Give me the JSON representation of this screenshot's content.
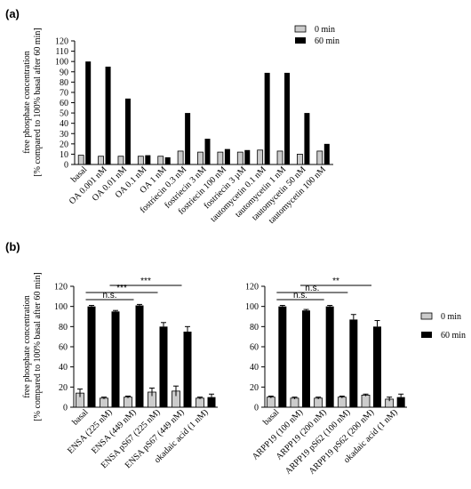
{
  "panels": {
    "a_label": "(a)",
    "b_label": "(b)"
  },
  "chart_data": [
    {
      "type": "bar",
      "panel": "(a)",
      "ylabel": "free phosphate concentration\n[% compared to 100% basal after 60 min]",
      "ylim": [
        0,
        120
      ],
      "yticks": [
        0,
        10,
        20,
        30,
        40,
        50,
        60,
        70,
        80,
        90,
        100,
        110,
        120
      ],
      "legend_position": "top-right",
      "categories": [
        "basal",
        "OA 0.001 nM",
        "OA 0.01 nM",
        "OA 0.1 nM",
        "OA 1 nM",
        "fostriecin 0.3 nM",
        "fostriecin 3 nM",
        "fostriecin 100 nM",
        "fostriecin 3 µM",
        "tautomycetin 0.1 nM",
        "tautomycetin 1 nM",
        "tautomycetin 50 nM",
        "tautomycetin 100 nM"
      ],
      "series": [
        {
          "name": "0 min",
          "color": "#cccccc",
          "values": [
            9,
            8,
            8,
            8,
            8,
            13,
            12,
            12,
            12,
            14,
            13,
            10,
            13
          ]
        },
        {
          "name": "60 min",
          "color": "#000000",
          "values": [
            100,
            95,
            64,
            9,
            7,
            50,
            25,
            15,
            14,
            89,
            89,
            50,
            20
          ]
        }
      ]
    },
    {
      "type": "bar",
      "panel": "(b) left",
      "ylabel": "free phosphate concentration\n[% compared to 100% basal after 60 min]",
      "ylim": [
        0,
        120
      ],
      "yticks": [
        0,
        20,
        40,
        60,
        80,
        100,
        120
      ],
      "categories": [
        "basal",
        "ENSA (225 nM)",
        "ENSA (449 nM)",
        "ENSA pS67 (225 nM)",
        "ENSA pS67 (449 nM)",
        "okadaic acid (1 nM)"
      ],
      "series": [
        {
          "name": "0 min",
          "color": "#cccccc",
          "values": [
            14,
            9,
            10,
            15,
            16,
            9
          ],
          "errors": [
            4,
            1,
            1,
            4,
            5,
            1
          ]
        },
        {
          "name": "60 min",
          "color": "#000000",
          "values": [
            100,
            95,
            101,
            80,
            75,
            10
          ],
          "errors": [
            1,
            1,
            1,
            4,
            5,
            3
          ]
        }
      ],
      "brackets": [
        {
          "from": 0,
          "to": 2,
          "label": "n.s.",
          "level": 1
        },
        {
          "from": 0,
          "to": 3,
          "label": "***",
          "level": 2
        },
        {
          "from": 1,
          "to": 4,
          "label": "***",
          "level": 3
        }
      ]
    },
    {
      "type": "bar",
      "panel": "(b) right",
      "ylim": [
        0,
        120
      ],
      "yticks": [
        0,
        20,
        40,
        60,
        80,
        100,
        120
      ],
      "legend_position": "top-right",
      "categories": [
        "basal",
        "ARPP19 (100 nM)",
        "ARPP19 (200 nM)",
        "ARPP19 pS62 (100 nM)",
        "ARPP19 pS62 (200 nM)",
        "okadaic acid (1 nM)"
      ],
      "series": [
        {
          "name": "0 min",
          "color": "#cccccc",
          "values": [
            10,
            9,
            9,
            10,
            12,
            8
          ],
          "errors": [
            1,
            1,
            1,
            1,
            1,
            2
          ]
        },
        {
          "name": "60 min",
          "color": "#000000",
          "values": [
            100,
            96,
            100,
            87,
            80,
            10
          ],
          "errors": [
            1,
            1,
            1,
            5,
            6,
            3
          ]
        }
      ],
      "brackets": [
        {
          "from": 0,
          "to": 2,
          "label": "n.s.",
          "level": 1
        },
        {
          "from": 0,
          "to": 3,
          "label": "n.s.",
          "level": 2
        },
        {
          "from": 1,
          "to": 4,
          "label": "**",
          "level": 3
        }
      ]
    }
  ]
}
